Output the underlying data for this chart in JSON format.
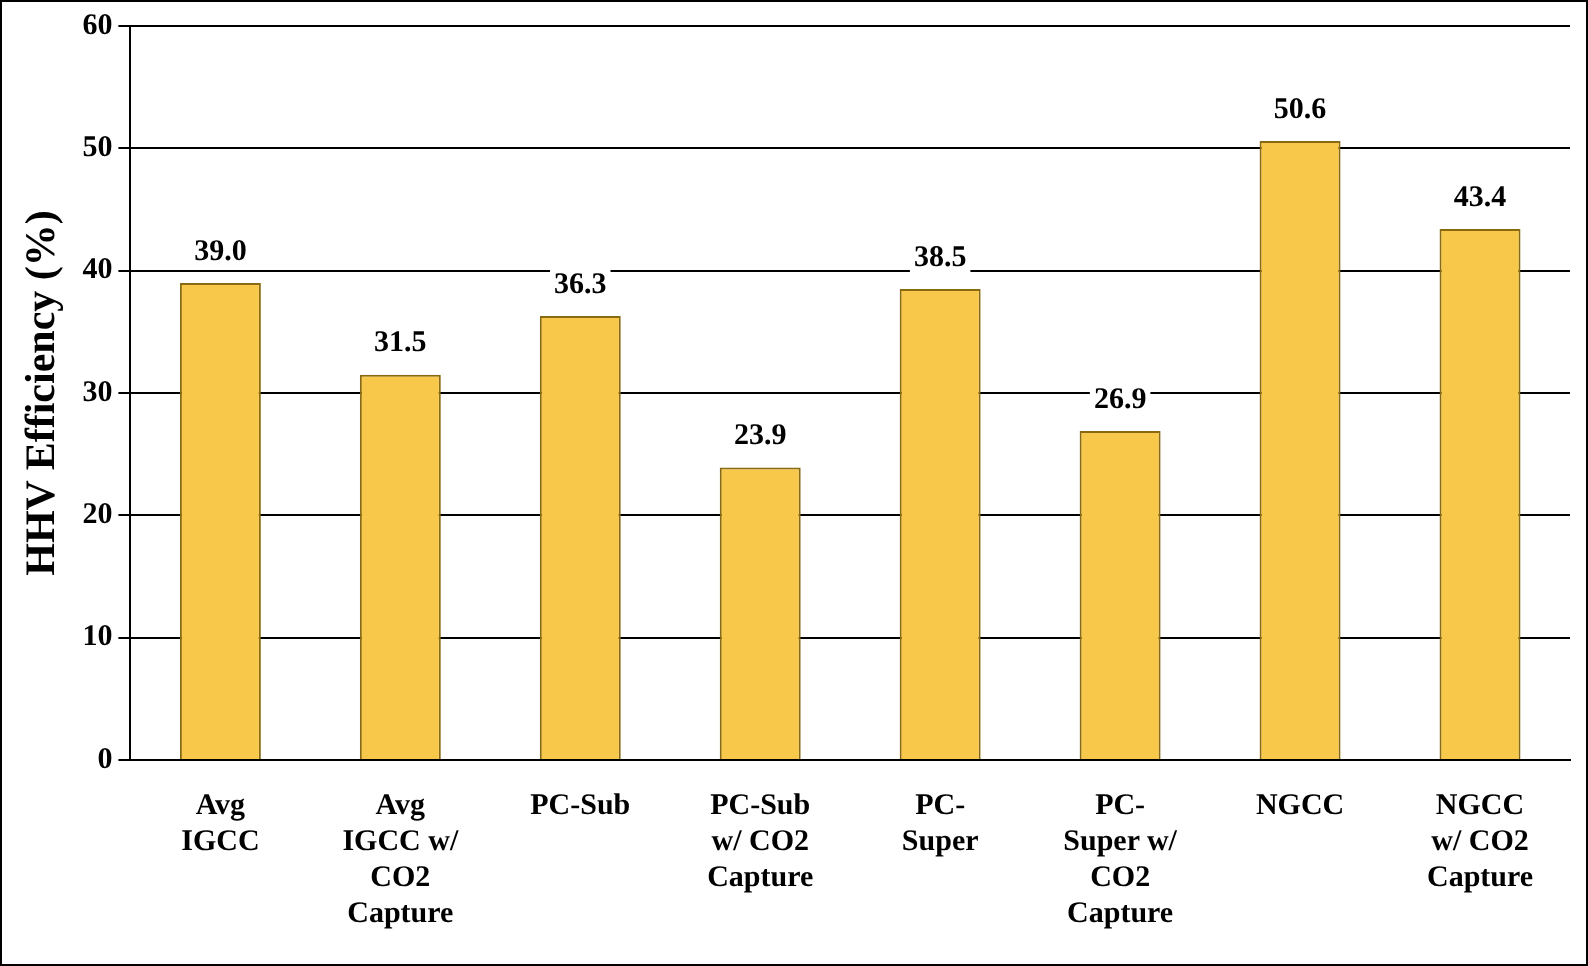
{
  "chart_data": {
    "type": "bar",
    "ylabel": "HHV Efficiency (%)",
    "categories": [
      "Avg\nIGCC",
      "Avg\nIGCC w/\nCO2\nCapture",
      "PC-Sub",
      "PC-Sub\nw/ CO2\nCapture",
      "PC-\nSuper",
      "PC-\nSuper w/\nCO2\nCapture",
      "NGCC",
      "NGCC\nw/ CO2\nCapture"
    ],
    "values": [
      39.0,
      31.5,
      36.3,
      23.9,
      38.5,
      26.9,
      50.6,
      43.4
    ],
    "value_labels": [
      "39.0",
      "31.5",
      "36.3",
      "23.9",
      "38.5",
      "26.9",
      "50.6",
      "43.4"
    ],
    "color": "#f7c84a",
    "ylim": [
      0,
      60
    ],
    "yticks": [
      0,
      10,
      20,
      30,
      40,
      50,
      60
    ],
    "grid": "y",
    "legend": false
  }
}
